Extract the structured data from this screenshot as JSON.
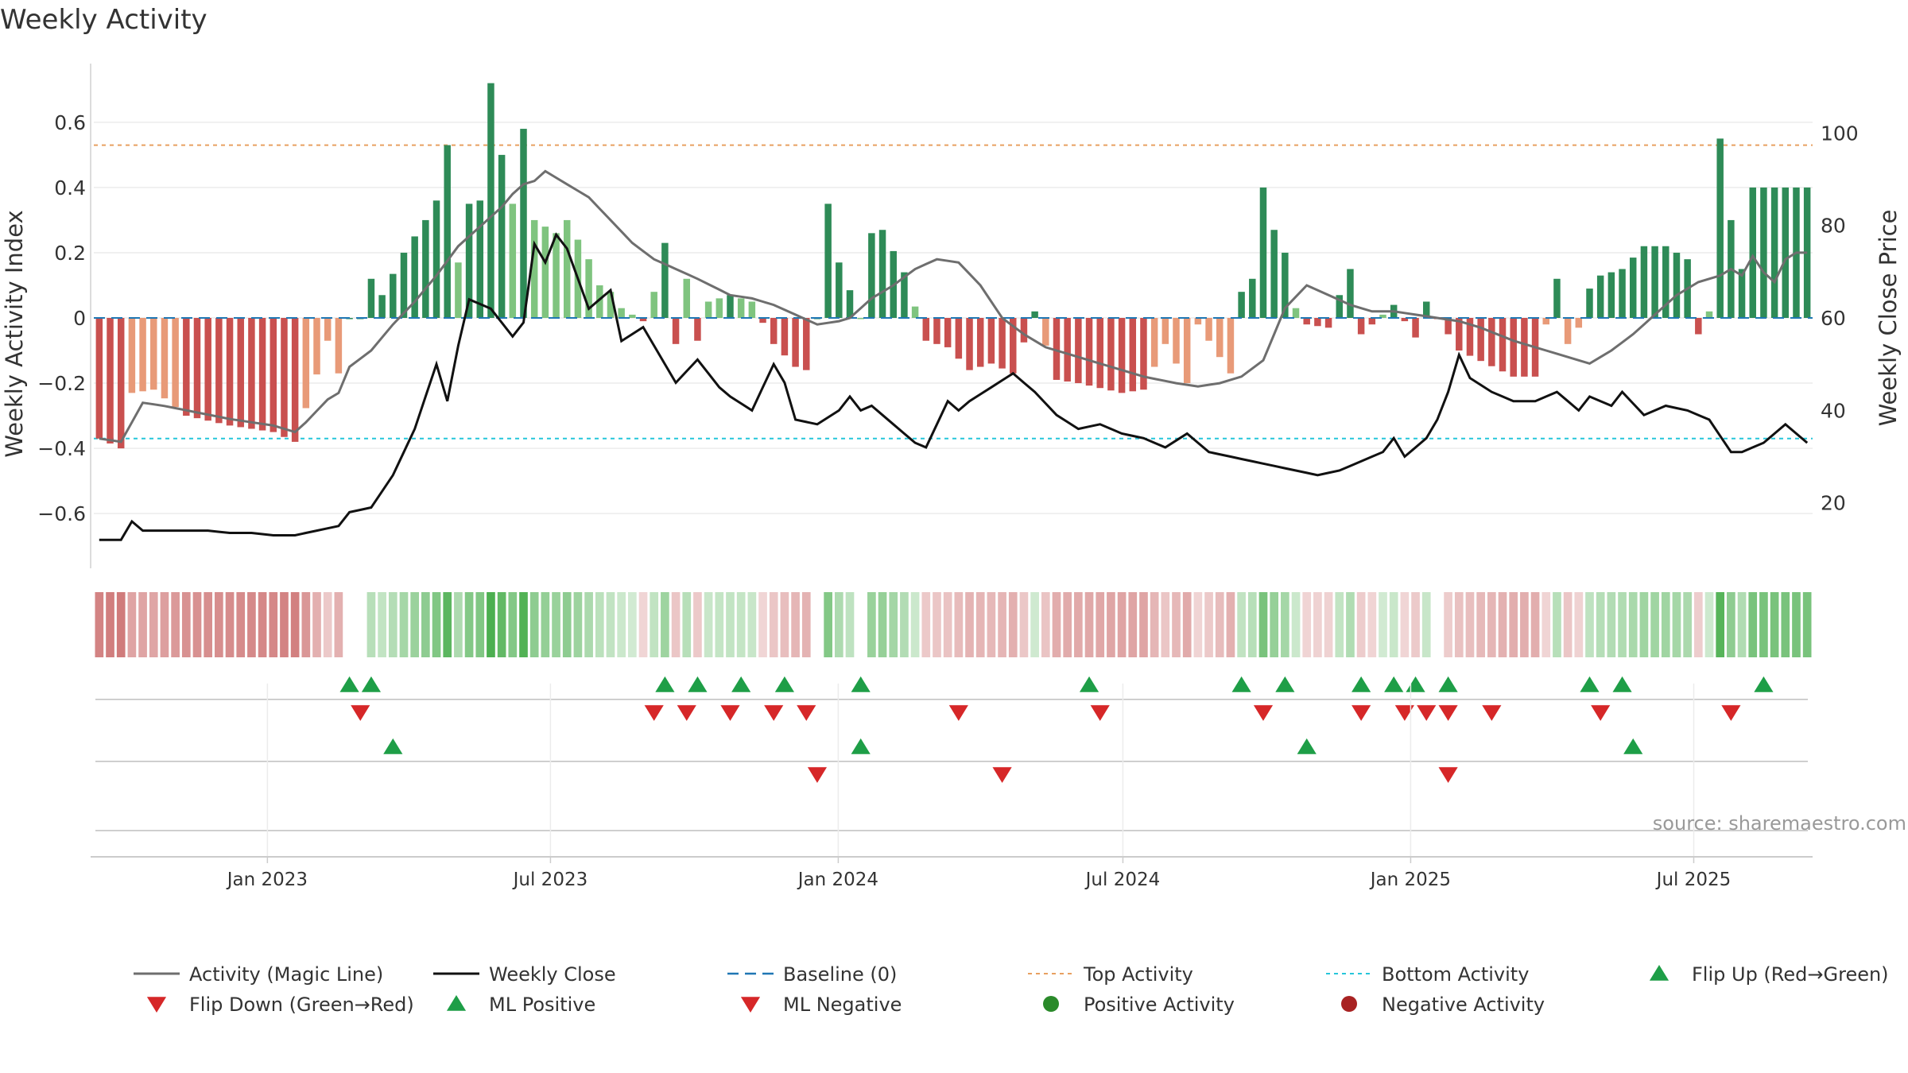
{
  "chart_data": {
    "type": "bar",
    "title": "Weekly Activity",
    "ylabel_left": "Weekly Activity Index",
    "ylabel_right": "Weekly Close Price",
    "ylim_left": [
      -0.78,
      0.78
    ],
    "ylim_right": [
      5,
      115
    ],
    "yticks_left": [
      {
        "value": 0.6,
        "label": "0.6"
      },
      {
        "value": 0.4,
        "label": "0.4"
      },
      {
        "value": 0.2,
        "label": "0.2"
      },
      {
        "value": 0,
        "label": "0"
      },
      {
        "value": -0.2,
        "label": "−0.2"
      },
      {
        "value": -0.4,
        "label": "−0.4"
      },
      {
        "value": -0.6,
        "label": "−0.6"
      }
    ],
    "yticks_right": [
      {
        "value": 100,
        "label": "100"
      },
      {
        "value": 80,
        "label": "80"
      },
      {
        "value": 60,
        "label": "60"
      },
      {
        "value": 40,
        "label": "40"
      },
      {
        "value": 20,
        "label": "20"
      }
    ],
    "x_start": "2022-09-12",
    "x_end": "2025-09-15",
    "weeks": 158,
    "xticks": [
      {
        "date": "2023-01-01",
        "label": "Jan 2023"
      },
      {
        "date": "2023-07-01",
        "label": "Jul 2023"
      },
      {
        "date": "2024-01-01",
        "label": "Jan 2024"
      },
      {
        "date": "2024-07-01",
        "label": "Jul 2024"
      },
      {
        "date": "2025-01-01",
        "label": "Jan 2025"
      },
      {
        "date": "2025-07-01",
        "label": "Jul 2025"
      }
    ],
    "top_activity": 0.53,
    "bottom_activity": -0.37,
    "activity_keypoints": [
      [
        0,
        -0.37
      ],
      [
        2,
        -0.4
      ],
      [
        3,
        -0.23
      ],
      [
        5,
        -0.22
      ],
      [
        8,
        -0.3
      ],
      [
        12,
        -0.33
      ],
      [
        16,
        -0.35
      ],
      [
        18,
        -0.38
      ],
      [
        21,
        -0.07
      ],
      [
        22,
        -0.17
      ],
      [
        23,
        0
      ],
      [
        24,
        0
      ],
      [
        25,
        0.12
      ],
      [
        26,
        0.07
      ],
      [
        28,
        0.2
      ],
      [
        30,
        0.3
      ],
      [
        31,
        0.36
      ],
      [
        32,
        0.53
      ],
      [
        33,
        0.17
      ],
      [
        34,
        0.35
      ],
      [
        35,
        0.36
      ],
      [
        36,
        0.72
      ],
      [
        37,
        0.5
      ],
      [
        38,
        0.35
      ],
      [
        39,
        0.58
      ],
      [
        40,
        0.3
      ],
      [
        42,
        0.26
      ],
      [
        43,
        0.3
      ],
      [
        45,
        0.18
      ],
      [
        46,
        0.1
      ],
      [
        47,
        0.08
      ],
      [
        48,
        0.03
      ],
      [
        50,
        -0.01
      ],
      [
        51,
        0.08
      ],
      [
        52,
        0.23
      ],
      [
        53,
        -0.08
      ],
      [
        54,
        0.12
      ],
      [
        55,
        -0.07
      ],
      [
        56,
        0.05
      ],
      [
        57,
        0.06
      ],
      [
        58,
        0.07
      ],
      [
        60,
        0.05
      ],
      [
        62,
        -0.08
      ],
      [
        64,
        -0.15
      ],
      [
        65,
        -0.16
      ],
      [
        66,
        0
      ],
      [
        67,
        0.35
      ],
      [
        68,
        0.17
      ],
      [
        70,
        0
      ],
      [
        71,
        0.26
      ],
      [
        72,
        0.27
      ],
      [
        74,
        0.14
      ],
      [
        76,
        -0.07
      ],
      [
        78,
        -0.09
      ],
      [
        80,
        -0.16
      ],
      [
        82,
        -0.14
      ],
      [
        84,
        -0.17
      ],
      [
        86,
        0.02
      ],
      [
        88,
        -0.19
      ],
      [
        90,
        -0.2
      ],
      [
        94,
        -0.23
      ],
      [
        96,
        -0.22
      ],
      [
        98,
        -0.08
      ],
      [
        100,
        -0.2
      ],
      [
        101,
        -0.02
      ],
      [
        104,
        -0.17
      ],
      [
        105,
        0.08
      ],
      [
        106,
        0.12
      ],
      [
        107,
        0.4
      ],
      [
        108,
        0.27
      ],
      [
        109,
        0.2
      ],
      [
        110,
        0.03
      ],
      [
        111,
        -0.02
      ],
      [
        113,
        -0.03
      ],
      [
        114,
        0.07
      ],
      [
        115,
        0.15
      ],
      [
        116,
        -0.05
      ],
      [
        119,
        0.04
      ],
      [
        121,
        -0.06
      ],
      [
        122,
        0.05
      ],
      [
        125,
        -0.1
      ],
      [
        130,
        -0.18
      ],
      [
        132,
        -0.18
      ],
      [
        133,
        -0.02
      ],
      [
        134,
        0.12
      ],
      [
        135,
        -0.08
      ],
      [
        136,
        -0.03
      ],
      [
        137,
        0.09
      ],
      [
        138,
        0.13
      ],
      [
        140,
        0.15
      ],
      [
        142,
        0.22
      ],
      [
        144,
        0.22
      ],
      [
        146,
        0.18
      ],
      [
        147,
        -0.05
      ],
      [
        148,
        0.02
      ],
      [
        149,
        0.55
      ],
      [
        150,
        0.3
      ],
      [
        151,
        0.15
      ],
      [
        152,
        0.4
      ]
    ],
    "ml_keypoints": [
      [
        0,
        -0.37
      ],
      [
        2,
        -0.38
      ],
      [
        4,
        -0.26
      ],
      [
        6,
        -0.27
      ],
      [
        12,
        -0.31
      ],
      [
        16,
        -0.33
      ],
      [
        18,
        -0.35
      ],
      [
        19,
        -0.32
      ],
      [
        21,
        -0.25
      ],
      [
        22,
        -0.23
      ],
      [
        23,
        -0.15
      ],
      [
        25,
        -0.1
      ],
      [
        27,
        -0.02
      ],
      [
        29,
        0.05
      ],
      [
        31,
        0.13
      ],
      [
        33,
        0.22
      ],
      [
        35,
        0.28
      ],
      [
        37,
        0.34
      ],
      [
        38,
        0.38
      ],
      [
        39,
        0.41
      ],
      [
        40,
        0.42
      ],
      [
        41,
        0.45
      ],
      [
        43,
        0.41
      ],
      [
        45,
        0.37
      ],
      [
        47,
        0.3
      ],
      [
        49,
        0.23
      ],
      [
        51,
        0.18
      ],
      [
        53,
        0.15
      ],
      [
        55,
        0.12
      ],
      [
        58,
        0.07
      ],
      [
        60,
        0.06
      ],
      [
        62,
        0.04
      ],
      [
        64,
        0.01
      ],
      [
        66,
        -0.02
      ],
      [
        68,
        -0.01
      ],
      [
        69,
        0
      ],
      [
        71,
        0.06
      ],
      [
        73,
        0.1
      ],
      [
        75,
        0.15
      ],
      [
        77,
        0.18
      ],
      [
        79,
        0.17
      ],
      [
        81,
        0.1
      ],
      [
        83,
        0
      ],
      [
        85,
        -0.05
      ],
      [
        87,
        -0.09
      ],
      [
        90,
        -0.12
      ],
      [
        93,
        -0.15
      ],
      [
        96,
        -0.18
      ],
      [
        99,
        -0.2
      ],
      [
        101,
        -0.21
      ],
      [
        103,
        -0.2
      ],
      [
        105,
        -0.18
      ],
      [
        107,
        -0.13
      ],
      [
        109,
        0.03
      ],
      [
        111,
        0.1
      ],
      [
        113,
        0.07
      ],
      [
        115,
        0.04
      ],
      [
        117,
        0.02
      ],
      [
        119,
        0.02
      ],
      [
        121,
        0.01
      ],
      [
        123,
        0
      ],
      [
        125,
        -0.01
      ],
      [
        127,
        -0.03
      ],
      [
        130,
        -0.07
      ],
      [
        133,
        -0.1
      ],
      [
        135,
        -0.12
      ],
      [
        137,
        -0.14
      ],
      [
        139,
        -0.1
      ],
      [
        141,
        -0.05
      ],
      [
        143,
        0.01
      ],
      [
        145,
        0.07
      ],
      [
        147,
        0.11
      ],
      [
        149,
        0.13
      ],
      [
        150,
        0.15
      ],
      [
        151,
        0.13
      ],
      [
        152,
        0.19
      ],
      [
        153,
        0.14
      ],
      [
        154,
        0.11
      ],
      [
        155,
        0.18
      ],
      [
        156,
        0.2
      ],
      [
        157,
        0.2
      ]
    ],
    "close_keypoints": [
      [
        0,
        12
      ],
      [
        2,
        12
      ],
      [
        3,
        16
      ],
      [
        4,
        14
      ],
      [
        6,
        14
      ],
      [
        8,
        14
      ],
      [
        10,
        14
      ],
      [
        12,
        13.5
      ],
      [
        14,
        13.5
      ],
      [
        16,
        13
      ],
      [
        18,
        13
      ],
      [
        20,
        14
      ],
      [
        22,
        15
      ],
      [
        23,
        18
      ],
      [
        25,
        19
      ],
      [
        27,
        26
      ],
      [
        29,
        36
      ],
      [
        31,
        50
      ],
      [
        32,
        42
      ],
      [
        33,
        54
      ],
      [
        34,
        64
      ],
      [
        36,
        62
      ],
      [
        38,
        56
      ],
      [
        39,
        59
      ],
      [
        40,
        76
      ],
      [
        41,
        72
      ],
      [
        42,
        78
      ],
      [
        43,
        75
      ],
      [
        45,
        62
      ],
      [
        47,
        66
      ],
      [
        48,
        55
      ],
      [
        50,
        58
      ],
      [
        52,
        50
      ],
      [
        53,
        46
      ],
      [
        55,
        51
      ],
      [
        57,
        45
      ],
      [
        58,
        43
      ],
      [
        60,
        40
      ],
      [
        62,
        50
      ],
      [
        63,
        46
      ],
      [
        64,
        38
      ],
      [
        66,
        37
      ],
      [
        68,
        40
      ],
      [
        69,
        43
      ],
      [
        70,
        40
      ],
      [
        71,
        41
      ],
      [
        72,
        39
      ],
      [
        73,
        37
      ],
      [
        75,
        33
      ],
      [
        76,
        32
      ],
      [
        77,
        37
      ],
      [
        78,
        42
      ],
      [
        79,
        40
      ],
      [
        80,
        42
      ],
      [
        82,
        45
      ],
      [
        84,
        48
      ],
      [
        86,
        44
      ],
      [
        88,
        39
      ],
      [
        90,
        36
      ],
      [
        92,
        37
      ],
      [
        94,
        35
      ],
      [
        96,
        34
      ],
      [
        98,
        32
      ],
      [
        100,
        35
      ],
      [
        102,
        31
      ],
      [
        104,
        30
      ],
      [
        106,
        29
      ],
      [
        108,
        28
      ],
      [
        110,
        27
      ],
      [
        112,
        26
      ],
      [
        114,
        27
      ],
      [
        116,
        29
      ],
      [
        118,
        31
      ],
      [
        119,
        34
      ],
      [
        120,
        30
      ],
      [
        122,
        34
      ],
      [
        123,
        38
      ],
      [
        124,
        44
      ],
      [
        125,
        52
      ],
      [
        126,
        47
      ],
      [
        128,
        44
      ],
      [
        130,
        42
      ],
      [
        132,
        42
      ],
      [
        134,
        44
      ],
      [
        136,
        40
      ],
      [
        137,
        43
      ],
      [
        139,
        41
      ],
      [
        140,
        44
      ],
      [
        142,
        39
      ],
      [
        144,
        41
      ],
      [
        146,
        40
      ],
      [
        148,
        38
      ],
      [
        150,
        31
      ],
      [
        151,
        31
      ],
      [
        153,
        33
      ],
      [
        155,
        37
      ],
      [
        156,
        35
      ],
      [
        157,
        33
      ]
    ],
    "legend": [
      {
        "key": "activity_magic_line",
        "label": "Activity (Magic Line)",
        "color": "#6e6e6e",
        "marker": "line"
      },
      {
        "key": "weekly_close",
        "label": "Weekly Close",
        "color": "#111111",
        "marker": "line"
      },
      {
        "key": "baseline",
        "label": "Baseline (0)",
        "color": "#1f77b4",
        "marker": "dash"
      },
      {
        "key": "top_activity",
        "label": "Top Activity",
        "color": "#e8a060",
        "marker": "dot-line"
      },
      {
        "key": "bottom_activity",
        "label": "Bottom Activity",
        "color": "#26c6da",
        "marker": "dot-line"
      },
      {
        "key": "flip_up",
        "label": "Flip Up (Red→Green)",
        "color": "#1e9e47",
        "marker": "triangle-up"
      },
      {
        "key": "flip_down",
        "label": "Flip Down (Green→Red)",
        "color": "#d62728",
        "marker": "triangle-down"
      },
      {
        "key": "ml_positive",
        "label": "ML Positive",
        "color": "#1e9e47",
        "marker": "triangle-up"
      },
      {
        "key": "ml_negative",
        "label": "ML Negative",
        "color": "#d62728",
        "marker": "triangle-down"
      },
      {
        "key": "positive_activity",
        "label": "Positive Activity",
        "color": "#2a8a2a",
        "marker": "circle"
      },
      {
        "key": "negative_activity",
        "label": "Negative Activity",
        "color": "#a82222",
        "marker": "circle"
      }
    ],
    "flip_up_weeks": [
      23,
      25,
      52,
      55,
      59,
      63,
      70,
      91,
      105,
      109,
      116,
      119,
      121,
      124,
      137,
      140,
      153
    ],
    "flip_down_weeks": [
      24,
      51,
      54,
      58,
      62,
      65,
      79,
      92,
      107,
      116,
      120,
      122,
      124,
      128,
      138,
      150
    ],
    "ml_positive_weeks": [
      27,
      70,
      111,
      141
    ],
    "ml_negative_weeks": [
      66,
      83,
      124
    ],
    "source": "source: sharemaestro.com"
  },
  "colors": {
    "strong_green": "#2e8b57",
    "light_green": "#7fc47f",
    "strong_red": "#c9504f",
    "light_red": "#e89a78",
    "grid": "#ececec",
    "axis": "#d0d0d0",
    "text": "#333333",
    "source_text": "#999999"
  }
}
